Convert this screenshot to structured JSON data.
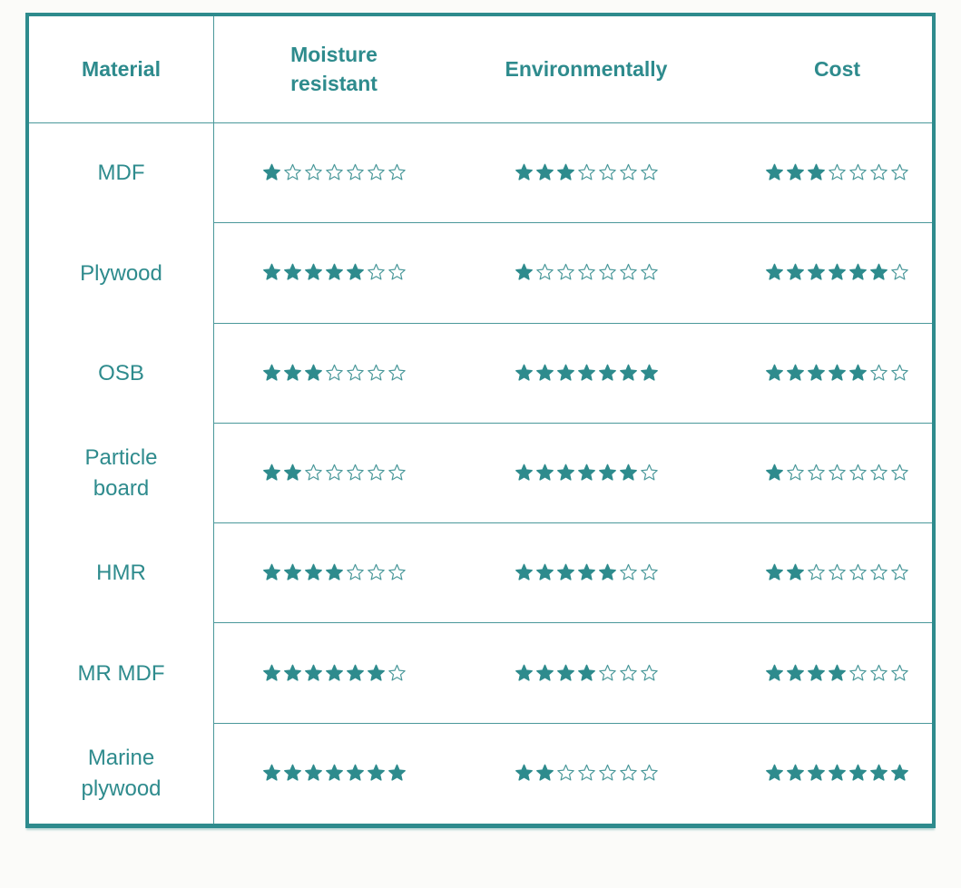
{
  "colors": {
    "accent_teal": "#2e8b8d",
    "grid_line_teal": "#4a989a",
    "table_background": "#ffffff",
    "page_background": "#fbfbf9",
    "empty_star_fill": "#ffffff"
  },
  "chart_data": {
    "type": "table",
    "title": "",
    "columns": [
      "Material",
      "Moisture resistant",
      "Environmentally",
      "Cost"
    ],
    "rating_scale": {
      "min": 0,
      "max": 7
    },
    "rows": [
      {
        "material": "MDF",
        "moisture_resistant": 1,
        "environmentally": 3,
        "cost": 3
      },
      {
        "material": "Plywood",
        "moisture_resistant": 5,
        "environmentally": 1,
        "cost": 6
      },
      {
        "material": "OSB",
        "moisture_resistant": 3,
        "environmentally": 7,
        "cost": 5
      },
      {
        "material": "Particle board",
        "moisture_resistant": 2,
        "environmentally": 6,
        "cost": 1
      },
      {
        "material": "HMR",
        "moisture_resistant": 4,
        "environmentally": 5,
        "cost": 2
      },
      {
        "material": "MR MDF",
        "moisture_resistant": 6,
        "environmentally": 4,
        "cost": 4
      },
      {
        "material": "Marine plywood",
        "moisture_resistant": 7,
        "environmentally": 2,
        "cost": 7
      }
    ]
  }
}
